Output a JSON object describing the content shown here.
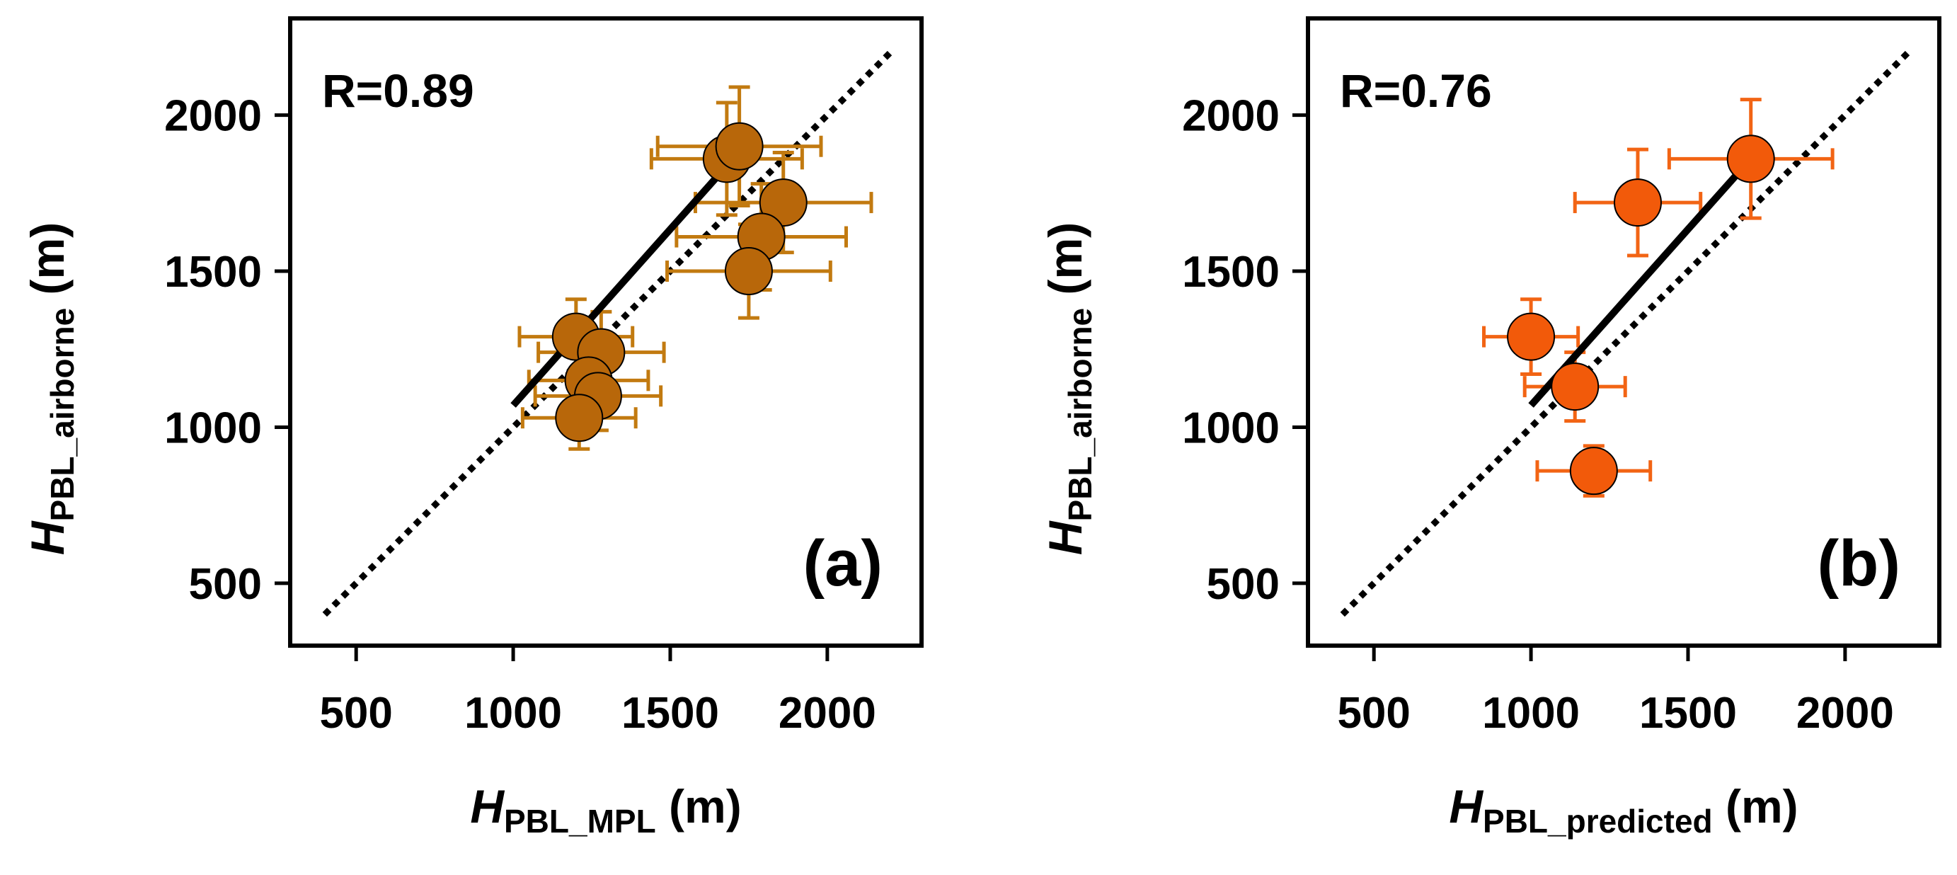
{
  "figure": {
    "description_free": true
  },
  "chart_data": [
    {
      "id": "a",
      "type": "scatter",
      "panel_label": "(a)",
      "annotation": "R=0.89",
      "xlabel": {
        "main": "H",
        "sub": "PBL_MPL",
        "unit": "(m)"
      },
      "ylabel": {
        "main": "H",
        "sub": "PBL_airborne",
        "unit": "(m)"
      },
      "xlim": [
        290,
        2300
      ],
      "ylim": [
        300,
        2310
      ],
      "xticks": [
        500,
        1000,
        1500,
        2000
      ],
      "yticks": [
        500,
        1000,
        1500,
        2000
      ],
      "xtick_labels": [
        "500",
        "1000",
        "1500",
        "2000"
      ],
      "ytick_labels": [
        "500",
        "1000",
        "1500",
        "2000"
      ],
      "marker_color": "#b8670a",
      "errorbar_color": "#c27a10",
      "points": [
        {
          "x": 1680,
          "y": 1860,
          "xerr": 240,
          "yerr": 180
        },
        {
          "x": 1720,
          "y": 1900,
          "xerr": 260,
          "yerr": 190
        },
        {
          "x": 1860,
          "y": 1720,
          "xerr": 280,
          "yerr": 160
        },
        {
          "x": 1790,
          "y": 1610,
          "xerr": 270,
          "yerr": 170
        },
        {
          "x": 1750,
          "y": 1500,
          "xerr": 260,
          "yerr": 150
        },
        {
          "x": 1200,
          "y": 1290,
          "xerr": 180,
          "yerr": 120
        },
        {
          "x": 1280,
          "y": 1240,
          "xerr": 200,
          "yerr": 130
        },
        {
          "x": 1240,
          "y": 1150,
          "xerr": 190,
          "yerr": 120
        },
        {
          "x": 1270,
          "y": 1100,
          "xerr": 200,
          "yerr": 110
        },
        {
          "x": 1210,
          "y": 1030,
          "xerr": 180,
          "yerr": 100
        }
      ],
      "fit_line": {
        "x": [
          1000,
          1700
        ],
        "y": [
          1070,
          1860
        ]
      },
      "one_to_one": {
        "x": [
          400,
          2200
        ],
        "y": [
          400,
          2200
        ]
      }
    },
    {
      "id": "b",
      "type": "scatter",
      "panel_label": "(b)",
      "annotation": "R=0.76",
      "xlabel": {
        "main": "H",
        "sub": "PBL_predicted",
        "unit": "(m)"
      },
      "ylabel": {
        "main": "H",
        "sub": "PBL_airborne",
        "unit": "(m)"
      },
      "xlim": [
        290,
        2300
      ],
      "ylim": [
        300,
        2310
      ],
      "xticks": [
        500,
        1000,
        1500,
        2000
      ],
      "yticks": [
        500,
        1000,
        1500,
        2000
      ],
      "xtick_labels": [
        "500",
        "1000",
        "1500",
        "2000"
      ],
      "ytick_labels": [
        "500",
        "1000",
        "1500",
        "2000"
      ],
      "marker_color": "#f25a0a",
      "errorbar_color": "#f26414",
      "points": [
        {
          "x": 1700,
          "y": 1860,
          "xerr": 260,
          "yerr": 190
        },
        {
          "x": 1340,
          "y": 1720,
          "xerr": 200,
          "yerr": 170
        },
        {
          "x": 1000,
          "y": 1290,
          "xerr": 150,
          "yerr": 120
        },
        {
          "x": 1140,
          "y": 1130,
          "xerr": 160,
          "yerr": 110
        },
        {
          "x": 1200,
          "y": 860,
          "xerr": 180,
          "yerr": 80
        }
      ],
      "fit_line": {
        "x": [
          1000,
          1700
        ],
        "y": [
          1070,
          1860
        ]
      },
      "one_to_one": {
        "x": [
          400,
          2200
        ],
        "y": [
          400,
          2200
        ]
      }
    }
  ]
}
